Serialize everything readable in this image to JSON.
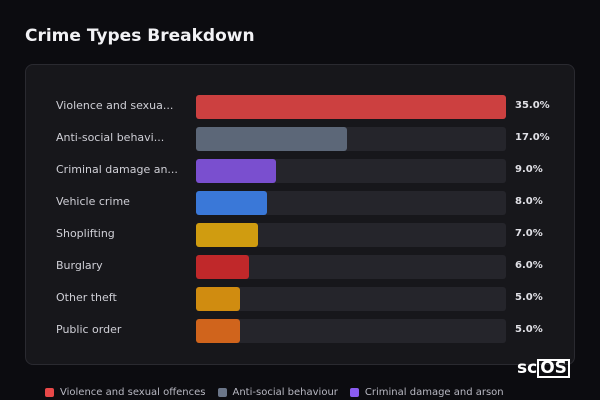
{
  "chart_data": {
    "type": "bar",
    "orientation": "horizontal",
    "title": "Crime Types Breakdown",
    "categories": [
      "Violence and sexua...",
      "Anti-social behavi...",
      "Criminal damage an...",
      "Vehicle crime",
      "Shoplifting",
      "Burglary",
      "Other theft",
      "Public order"
    ],
    "values": [
      35.0,
      17.0,
      9.0,
      8.0,
      7.0,
      6.0,
      5.0,
      5.0
    ],
    "value_labels": [
      "35.0%",
      "17.0%",
      "9.0%",
      "8.0%",
      "7.0%",
      "6.0%",
      "5.0%",
      "5.0%"
    ],
    "colors": [
      "#cc4040",
      "#5c6778",
      "#7a4fcf",
      "#3a78d8",
      "#d09c10",
      "#c0282a",
      "#d08c10",
      "#d0641c"
    ],
    "xlim": [
      0,
      35
    ],
    "legend": [
      {
        "label": "Violence and sexual offences",
        "color": "#e84848"
      },
      {
        "label": "Anti-social behaviour",
        "color": "#6b7689"
      },
      {
        "label": "Criminal damage and arson",
        "color": "#8a5cf0"
      }
    ],
    "legend_position": "bottom"
  },
  "logo": {
    "text": "sc",
    "boxed": "OS"
  }
}
